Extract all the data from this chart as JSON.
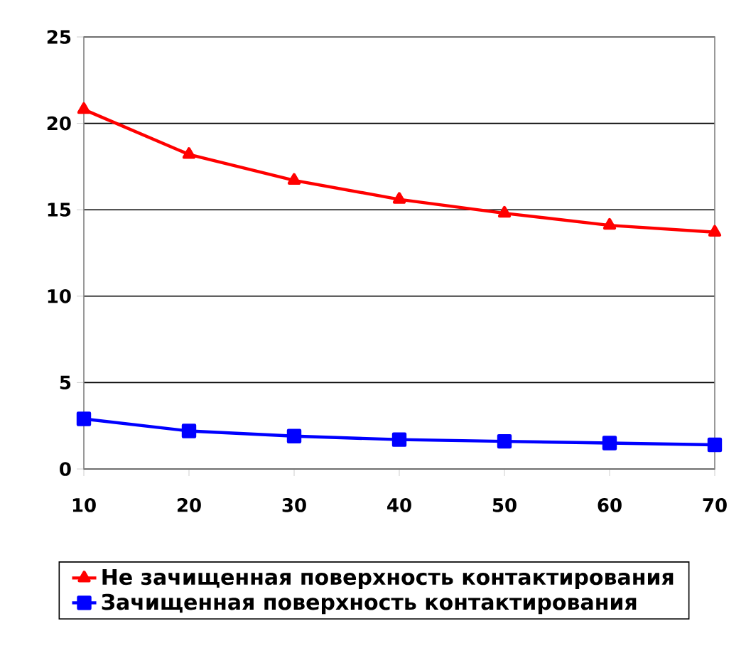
{
  "chart_data": {
    "type": "line",
    "x": [
      10,
      20,
      30,
      40,
      50,
      60,
      70
    ],
    "series": [
      {
        "name": "Не зачищенная поверхность контактирования",
        "color": "#ff0000",
        "marker": "triangle",
        "values": [
          20.8,
          18.2,
          16.7,
          15.6,
          14.8,
          14.1,
          13.7
        ]
      },
      {
        "name": "Зачищенная поверхность контактирования",
        "color": "#0000ff",
        "marker": "square",
        "values": [
          2.9,
          2.2,
          1.9,
          1.7,
          1.6,
          1.5,
          1.4
        ]
      }
    ],
    "xlim": [
      10,
      70
    ],
    "xticks": [
      10,
      20,
      30,
      40,
      50,
      60,
      70
    ],
    "ylim": [
      0,
      25
    ],
    "yticks": [
      0,
      5,
      10,
      15,
      20,
      25
    ],
    "grid": "y",
    "legend": "bottom",
    "line_style": "solid"
  }
}
